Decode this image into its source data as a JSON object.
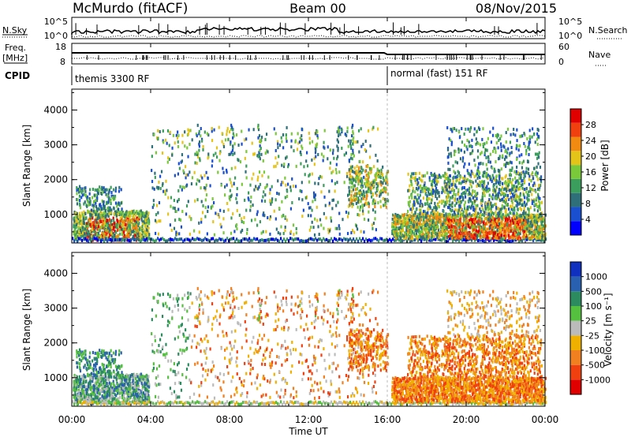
{
  "header": {
    "station": "McMurdo (fitACF)",
    "beam": "Beam 00",
    "date": "08/Nov/2015"
  },
  "strip_labels": {
    "nsky": "N.Sky",
    "nsky_ticks": [
      "10^5",
      "10^0"
    ],
    "nsearch": "N.Search",
    "freq": "Freq.",
    "freq_unit": "[MHz]",
    "freq_ticks": [
      "18",
      "8"
    ],
    "nave": "Nave",
    "nave_ticks": [
      "60",
      "0"
    ],
    "cpid": "CPID",
    "cpid_first": "themis 3300 RF",
    "cpid_second": "normal (fast) 151 RF"
  },
  "colors": {
    "power": [
      "#0000ff",
      "#1a4fd0",
      "#2f6f7a",
      "#3c9e5c",
      "#7ac93a",
      "#e5c41a",
      "#f08a10",
      "#f04010",
      "#e00000"
    ],
    "velocity": [
      "#1030c0",
      "#2a60b0",
      "#2c8c60",
      "#55c040",
      "#bbbbbb",
      "#f0b000",
      "#f08020",
      "#f04010",
      "#e00000"
    ]
  },
  "chart_data": [
    {
      "type": "heatmap",
      "name": "power",
      "ylabel": "Slant Range [km]",
      "xlabel": "",
      "x_ticks": [
        "00:00",
        "04:00",
        "08:00",
        "12:00",
        "16:00",
        "20:00",
        "00:00"
      ],
      "y_ticks": [
        "1000",
        "2000",
        "3000",
        "4000"
      ],
      "ylim": [
        180,
        4600
      ],
      "xlim_hours": [
        0,
        24
      ],
      "colorbar_label": "Power [dB]",
      "colorbar_ticks": [
        "4",
        "8",
        "12",
        "16",
        "20",
        "24",
        "28"
      ],
      "colorbar_range": [
        0,
        32
      ]
    },
    {
      "type": "heatmap",
      "name": "velocity",
      "ylabel": "Slant Range [km]",
      "xlabel": "Time UT",
      "x_ticks": [
        "00:00",
        "04:00",
        "08:00",
        "12:00",
        "16:00",
        "20:00",
        "00:00"
      ],
      "y_ticks": [
        "1000",
        "2000",
        "3000",
        "4000"
      ],
      "ylim": [
        180,
        4600
      ],
      "xlim_hours": [
        0,
        24
      ],
      "colorbar_label": "Velocity [m s⁻¹]",
      "colorbar_ticks": [
        "1000",
        "500",
        "100",
        "25",
        "-25",
        "-100",
        "-500",
        "-1000"
      ]
    }
  ]
}
